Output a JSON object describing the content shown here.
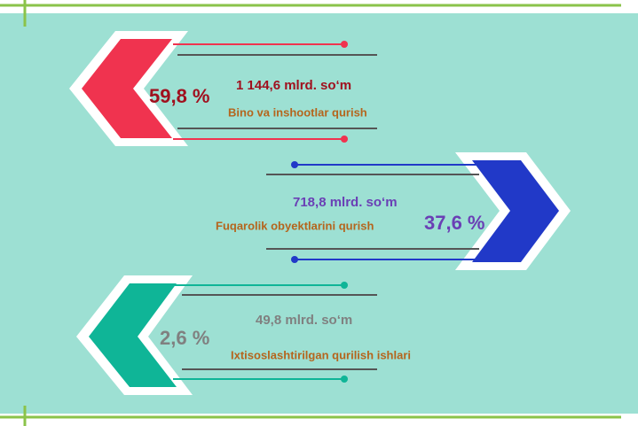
{
  "items": [
    {
      "percent": "59,8 %",
      "amount": "1 144,6 mlrd. so‘m",
      "label": "Bino va inshootlar qurish"
    },
    {
      "percent": "37,6 %",
      "amount": "718,8 mlrd. so‘m",
      "label": "Fuqarolik obyektlarini qurish"
    },
    {
      "percent": "2,6 %",
      "amount": "49,8 mlrd. so‘m",
      "label": "Ixtisoslashtirilgan qurilish ishlari"
    }
  ]
}
